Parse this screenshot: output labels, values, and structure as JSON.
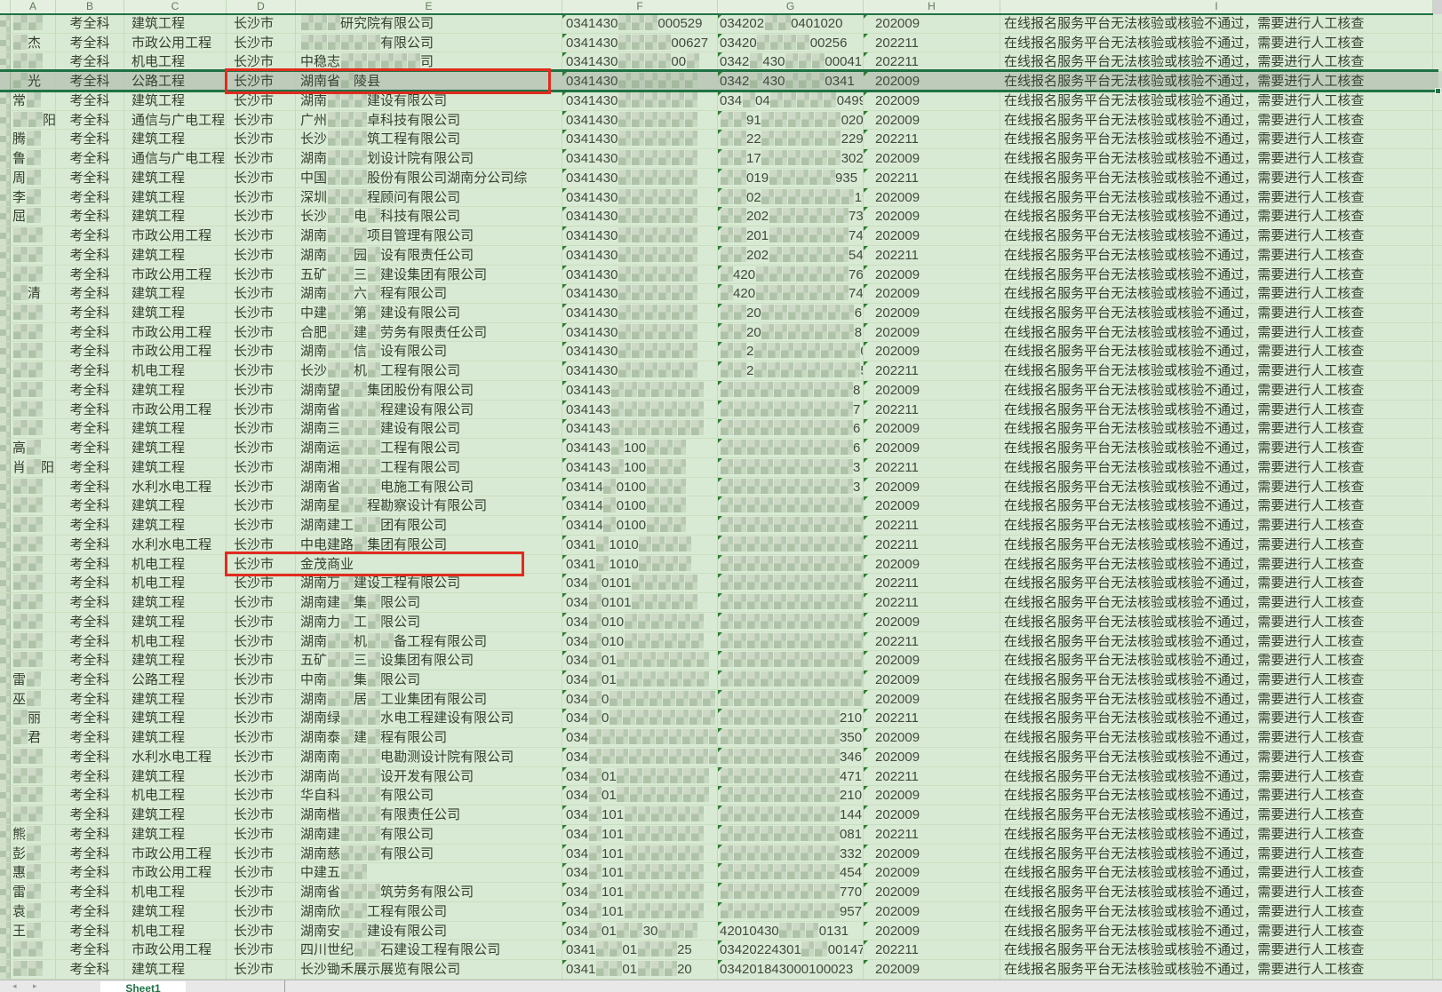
{
  "app": {
    "type": "spreadsheet-screenshot",
    "mosaic_marker": "~"
  },
  "header": {
    "columns": [
      "A",
      "B",
      "C",
      "D",
      "E",
      "F",
      "G",
      "H",
      "I"
    ]
  },
  "shared": {
    "subject": "考全科",
    "city": "长沙市",
    "remark": "在线报名服务平台无法核验或核验不通过，需要进行人工核查"
  },
  "sheet_tab": {
    "label": "Sheet1",
    "nav": "◂ ▸"
  },
  "colors": {
    "cell_bg": "#d9ead4",
    "selected_row_bg": "#ccd7c9",
    "selection_border_green": "#1f7244",
    "highlight_red": "#e12b1e",
    "corner_triangle_green": "#2e7d32",
    "header_letter": "#62795a"
  },
  "selection": {
    "selected_row": 4,
    "highlight_boxes": [
      {
        "row": 4,
        "columns": "D-E",
        "content": "长沙市 湖南省~陵县"
      },
      {
        "row": 29,
        "columns": "D-E",
        "content": "长沙市 金茂商业"
      }
    ]
  },
  "rows": [
    {
      "name": "~~",
      "major": "建筑工程",
      "company": "~~~研究院有限公司",
      "f": "0341430~~~000529",
      "g": "034202~~0401020",
      "h": "202009"
    },
    {
      "name": "~杰",
      "major": "市政公用工程",
      "company": "~~~~~~有限公司",
      "f": "0341430~~~~00627",
      "g": "03420~~~~00256",
      "h": "202211"
    },
    {
      "name": "~~",
      "major": "机电工程",
      "company": "中稳志~~~~~~司",
      "f": "0341430~~~~00~",
      "g": "0342~430~~~00041",
      "h": "202211"
    },
    {
      "name": "~光",
      "major": "公路工程",
      "company": "湖南省~陵县",
      "f": "0341430~~~~~~",
      "g": "0342~430~~~0341",
      "h": "202009"
    },
    {
      "name": "常~",
      "major": "建筑工程",
      "company": "湖南~~~建设有限公司",
      "f": "0341430~~~~~~",
      "g": "034~04~~~~~0499",
      "h": "202009"
    },
    {
      "name": "~~阳",
      "major": "通信与广电工程",
      "company": "广州~~~卓科技有限公司",
      "f": "0341430~~~~~~",
      "g": "~~91~~~~~~020",
      "h": "202009"
    },
    {
      "name": "腾~",
      "major": "建筑工程",
      "company": "长沙~~~筑工程有限公司",
      "f": "0341430~~~~~~",
      "g": "~~22~~~~~~229",
      "h": "202211"
    },
    {
      "name": "鲁~",
      "major": "通信与广电工程",
      "company": "湖南~~~划设计院有限公司",
      "f": "0341430~~~~~~",
      "g": "~~17~~~~~~302",
      "h": "202009"
    },
    {
      "name": "周~",
      "major": "建筑工程",
      "company": "中国~~~股份有限公司湖南分公司综",
      "f": "0341430~~~~~~",
      "g": "~~019~~~~~935",
      "h": "202211"
    },
    {
      "name": "李~",
      "major": "建筑工程",
      "company": "深圳~~~程顾问有限公司",
      "f": "0341430~~~~~~",
      "g": "~~02~~~~~~~19",
      "h": "202009"
    },
    {
      "name": "屈~",
      "major": "建筑工程",
      "company": "长沙~~电~科技有限公司",
      "f": "0341430~~~~~~",
      "g": "~~202~~~~~~73",
      "h": "202009"
    },
    {
      "name": "~~",
      "major": "市政公用工程",
      "company": "湖南~~~项目管理有限公司",
      "f": "0341430~~~~~~",
      "g": "~~201~~~~~~74",
      "h": "202009"
    },
    {
      "name": "~~",
      "major": "建筑工程",
      "company": "湖南~~园~设有限责任公司",
      "f": "0341430~~~~~~",
      "g": "~~202~~~~~~54",
      "h": "202211"
    },
    {
      "name": "~~",
      "major": "市政公用工程",
      "company": "五矿~~三~建设集团有限公司",
      "f": "0341430~~~~~~",
      "g": "~420~~~~~~~76",
      "h": "202009"
    },
    {
      "name": "~清",
      "major": "建筑工程",
      "company": "湖南~~六~程有限公司",
      "f": "0341430~~~~~~",
      "g": "~420~~~~~~~74",
      "h": "202009"
    },
    {
      "name": "~~",
      "major": "建筑工程",
      "company": "中建~~第~建设有限公司",
      "f": "0341430~~~~~~",
      "g": "~~20~~~~~~~6",
      "h": "202009"
    },
    {
      "name": "~~",
      "major": "市政公用工程",
      "company": "合肥~~建~劳务有限责任公司",
      "f": "0341430~~~~~~",
      "g": "~~20~~~~~~~8",
      "h": "202009"
    },
    {
      "name": "~~",
      "major": "市政公用工程",
      "company": "湖南~~信~设有限公司",
      "f": "0341430~~~~~~",
      "g": "~~2~~~~~~~~0",
      "h": "202009"
    },
    {
      "name": "~~",
      "major": "机电工程",
      "company": "长沙~~机~工程有限公司",
      "f": "0341430~~~~~~",
      "g": "~~2~~~~~~~~5",
      "h": "202211"
    },
    {
      "name": "~~",
      "major": "建筑工程",
      "company": "湖南望~~集团股份有限公司",
      "f": "034143~~~~~~~",
      "g": "~~~~~~~~~~8",
      "h": "202009"
    },
    {
      "name": "~~",
      "major": "市政公用工程",
      "company": "湖南省~~~程建设有限公司",
      "f": "034143~~~~~~~",
      "g": "~~~~~~~~~~7",
      "h": "202211"
    },
    {
      "name": "~~",
      "major": "建筑工程",
      "company": "湖南三~~~建设有限公司",
      "f": "034143~~~~~~~",
      "g": "~~~~~~~~~~6",
      "h": "202009"
    },
    {
      "name": "高~",
      "major": "建筑工程",
      "company": "湖南运~~~工程有限公司",
      "f": "034143~100~~~",
      "g": "~~~~~~~~~~6",
      "h": "202009"
    },
    {
      "name": "肖~阳",
      "major": "建筑工程",
      "company": "湖南湘~~~工程有限公司",
      "f": "034143~100~~~",
      "g": "~~~~~~~~~~3",
      "h": "202211"
    },
    {
      "name": "~~",
      "major": "水利水电工程",
      "company": "湖南省~~~电施工有限公司",
      "f": "03414~0100~~~",
      "g": "~~~~~~~~~~3",
      "h": "202009"
    },
    {
      "name": "~~",
      "major": "建筑工程",
      "company": "湖南星~~程勘察设计有限公司",
      "f": "03414~0100~~~",
      "g": "~~~~~~~~~~~",
      "h": "202009"
    },
    {
      "name": "~~",
      "major": "建筑工程",
      "company": "湖南建工~~团有限公司",
      "f": "03414~0100~~~",
      "g": "~~~~~~~~~~~",
      "h": "202211"
    },
    {
      "name": "~~",
      "major": "水利水电工程",
      "company": "中电建路~集团有限公司",
      "f": "0341~1010~~~~",
      "g": "~~~~~~~~~~~",
      "h": "202211"
    },
    {
      "name": "~~",
      "major": "机电工程",
      "company": "金茂商业",
      "f": "0341~1010~~~~",
      "g": "~~~~~~~~~~~",
      "h": "202009"
    },
    {
      "name": "~~",
      "major": "机电工程",
      "company": "湖南万~建设工程有限公司",
      "f": "034~0101~~~~~",
      "g": "~~~~~~~~~~~",
      "h": "202211"
    },
    {
      "name": "~~",
      "major": "建筑工程",
      "company": "湖南建~集~限公司",
      "f": "034~0101~~~~~",
      "g": "~~~~~~~~~~~",
      "h": "202211"
    },
    {
      "name": "~~",
      "major": "建筑工程",
      "company": "湖南力~工~限公司",
      "f": "034~010~~~~~~",
      "g": "~~~~~~~~~~~",
      "h": "202009"
    },
    {
      "name": "~~",
      "major": "机电工程",
      "company": "湖南~~机~~备工程有限公司",
      "f": "034~010~~~~~~",
      "g": "~~~~~~~~~~~",
      "h": "202211"
    },
    {
      "name": "~~",
      "major": "建筑工程",
      "company": "五矿~~三~设集团有限公司",
      "f": "034~01~~~~~~~",
      "g": "~~~~~~~~~~~",
      "h": "202009"
    },
    {
      "name": "雷~",
      "major": "公路工程",
      "company": "中南~~集~限公司",
      "f": "034~01~~~~~~~",
      "g": "~~~~~~~~~~~",
      "h": "202009"
    },
    {
      "name": "巫~",
      "major": "建筑工程",
      "company": "湖南~~居~工业集团有限公司",
      "f": "034~0~~~~~~~~",
      "g": "~~~~~~~~~~~",
      "h": "202009"
    },
    {
      "name": "~丽",
      "major": "建筑工程",
      "company": "湖南绿~~~水电工程建设有限公司",
      "f": "034~0~~~~~~~~",
      "g": "~~~~~~~~~210",
      "h": "202211"
    },
    {
      "name": "~君",
      "major": "建筑工程",
      "company": "湖南泰~建~程有限公司",
      "f": "034~~~~~~~~~~",
      "g": "~~~~~~~~~350",
      "h": "202009"
    },
    {
      "name": "~~",
      "major": "水利水电工程",
      "company": "湖南南~~~电勘测设计院有限公司",
      "f": "034~~~~~~~~~~",
      "g": "~~~~~~~~~346",
      "h": "202009"
    },
    {
      "name": "~~",
      "major": "建筑工程",
      "company": "湖南尚~~~设开发有限公司",
      "f": "034~01~~~~~~~",
      "g": "~~~~~~~~~471",
      "h": "202211"
    },
    {
      "name": "~~",
      "major": "机电工程",
      "company": "华自科~~~有限公司",
      "f": "034~01~~~~~~~",
      "g": "~~~~~~~~~210",
      "h": "202009"
    },
    {
      "name": "~~",
      "major": "建筑工程",
      "company": "湖南楷~~~有限责任公司",
      "f": "034~101~~~~~~",
      "g": "~~~~~~~~~144",
      "h": "202009"
    },
    {
      "name": "熊~",
      "major": "建筑工程",
      "company": "湖南建~~~有限公司",
      "f": "034~101~~~~~~",
      "g": "~~~~~~~~~081",
      "h": "202211"
    },
    {
      "name": "彭~",
      "major": "市政公用工程",
      "company": "湖南慈~~~有限公司",
      "f": "034~101~~~~~~",
      "g": "~~~~~~~~~332",
      "h": "202009"
    },
    {
      "name": "惠~",
      "major": "市政公用工程",
      "company": "中建五~~",
      "f": "034~101~~~~~~",
      "g": "~~~~~~~~~454",
      "h": "202009"
    },
    {
      "name": "雷~",
      "major": "机电工程",
      "company": "湖南省~~~筑劳务有限公司",
      "f": "034~101~~~~~~",
      "g": "~~~~~~~~~770",
      "h": "202009"
    },
    {
      "name": "袁~",
      "major": "建筑工程",
      "company": "湖南欣~~工程有限公司",
      "f": "034~101~~~~~~",
      "g": "~~~~~~~~~957",
      "h": "202009"
    },
    {
      "name": "王~",
      "major": "机电工程",
      "company": "湖南安~~建设有限公司",
      "f": "034~01~~30~~~",
      "g": "42010430~~~0131",
      "h": "202009"
    },
    {
      "name": "~~",
      "major": "市政公用工程",
      "company": "四川世纪~~石建设工程有限公司",
      "f": "0341~~01~~~25",
      "g": "03420224301~~00147",
      "h": "202211"
    },
    {
      "name": "~~",
      "major": "建筑工程",
      "company": "长沙锄禾展示展览有限公司",
      "f": "0341~~01~~~20",
      "g": "034201843000100023",
      "h": "202009"
    }
  ]
}
